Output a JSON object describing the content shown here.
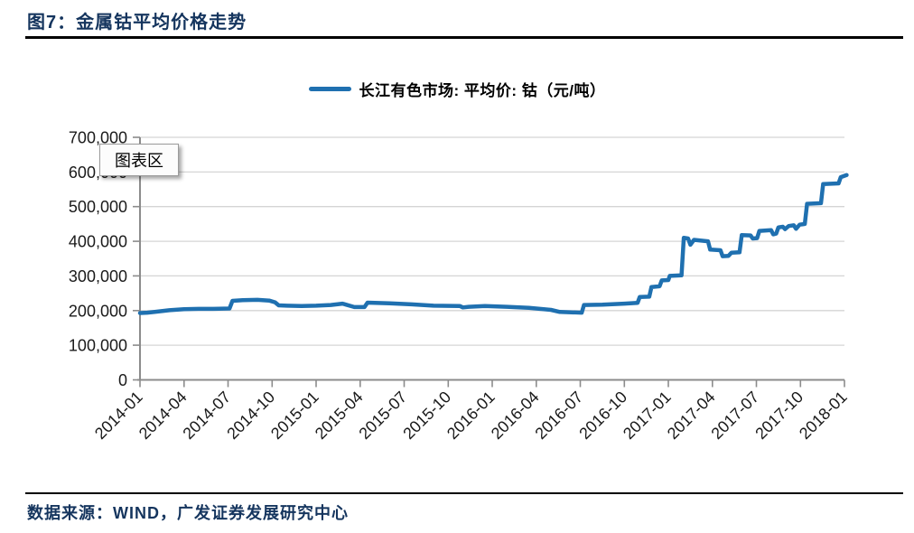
{
  "header": {
    "title": "图7：金属钴平均价格走势"
  },
  "overlay": {
    "chart_area_label": "图表区"
  },
  "footer": {
    "source": "数据来源：WIND，广发证券发展研究中心"
  },
  "chart_data": {
    "type": "line",
    "title": "图7：金属钴平均价格走势",
    "ylabel": "平均价（元/吨）",
    "xlabel": "",
    "ylim": [
      0,
      700000
    ],
    "grid": "horizontal",
    "legend_position": "top-center",
    "x_unit": "months since 2014-01",
    "x_ticks": [
      "2014-01",
      "2014-04",
      "2014-07",
      "2014-10",
      "2015-01",
      "2015-04",
      "2015-07",
      "2015-10",
      "2016-01",
      "2016-04",
      "2016-07",
      "2016-10",
      "2017-01",
      "2017-04",
      "2017-07",
      "2017-10",
      "2018-01"
    ],
    "y_ticks": [
      "0",
      "100,000",
      "200,000",
      "300,000",
      "400,000",
      "500,000",
      "600,000",
      "700,000"
    ],
    "series": [
      {
        "name": "长江有色市场: 平均价: 钴（元/吨）",
        "color": "#1F70B0",
        "points": [
          [
            0,
            193000
          ],
          [
            0.5,
            194000
          ],
          [
            1,
            196000
          ],
          [
            2,
            201000
          ],
          [
            3,
            204000
          ],
          [
            4,
            205000
          ],
          [
            5,
            205000
          ],
          [
            6.1,
            206000
          ],
          [
            6.3,
            228000
          ],
          [
            7,
            230000
          ],
          [
            8,
            231000
          ],
          [
            8.8,
            229000
          ],
          [
            9.2,
            224000
          ],
          [
            9.45,
            215000
          ],
          [
            10,
            214000
          ],
          [
            11,
            213000
          ],
          [
            12,
            214000
          ],
          [
            13,
            216000
          ],
          [
            13.8,
            220000
          ],
          [
            14.6,
            210000
          ],
          [
            15.3,
            210000
          ],
          [
            15.5,
            223000
          ],
          [
            17,
            221000
          ],
          [
            18.5,
            218000
          ],
          [
            20,
            214000
          ],
          [
            21.8,
            213000
          ],
          [
            22,
            209000
          ],
          [
            22.4,
            211000
          ],
          [
            23.5,
            213000
          ],
          [
            25,
            211000
          ],
          [
            26.5,
            208000
          ],
          [
            28,
            202000
          ],
          [
            28.6,
            196000
          ],
          [
            30.1,
            194000
          ],
          [
            30.25,
            216000
          ],
          [
            31.5,
            217000
          ],
          [
            33,
            220000
          ],
          [
            33.9,
            222000
          ],
          [
            34.05,
            239000
          ],
          [
            34.7,
            240000
          ],
          [
            34.85,
            268000
          ],
          [
            35.4,
            270000
          ],
          [
            35.55,
            287000
          ],
          [
            36,
            288000
          ],
          [
            36.1,
            300000
          ],
          [
            36.9,
            302000
          ],
          [
            37.05,
            410000
          ],
          [
            37.35,
            408000
          ],
          [
            37.5,
            390000
          ],
          [
            37.75,
            404000
          ],
          [
            38.7,
            400000
          ],
          [
            38.85,
            376000
          ],
          [
            39.55,
            374000
          ],
          [
            39.7,
            357000
          ],
          [
            40.1,
            358000
          ],
          [
            40.3,
            367000
          ],
          [
            40.85,
            368000
          ],
          [
            41,
            418000
          ],
          [
            41.6,
            417000
          ],
          [
            41.75,
            408000
          ],
          [
            42.05,
            409000
          ],
          [
            42.2,
            430000
          ],
          [
            43,
            432000
          ],
          [
            43.15,
            420000
          ],
          [
            43.35,
            422000
          ],
          [
            43.5,
            440000
          ],
          [
            43.8,
            442000
          ],
          [
            43.95,
            435000
          ],
          [
            44.2,
            444000
          ],
          [
            44.55,
            446000
          ],
          [
            44.7,
            436000
          ],
          [
            44.95,
            448000
          ],
          [
            45.3,
            450000
          ],
          [
            45.45,
            508000
          ],
          [
            46.4,
            510000
          ],
          [
            46.55,
            565000
          ],
          [
            47.6,
            567000
          ],
          [
            47.75,
            585000
          ],
          [
            48.15,
            591000
          ]
        ]
      }
    ]
  }
}
